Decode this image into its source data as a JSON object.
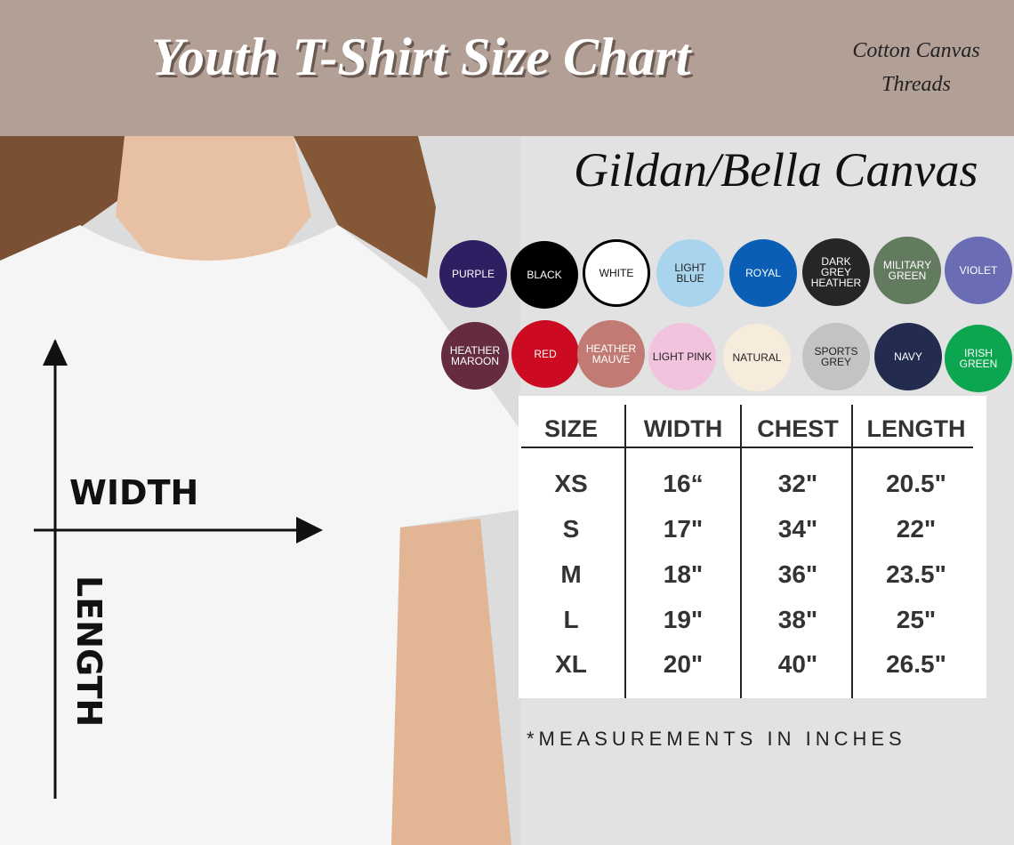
{
  "header": {
    "title": "Youth T-Shirt Size Chart",
    "brand_line1": "Cotton Canvas",
    "brand_line2": "Threads"
  },
  "subtitle": "Gildan/Bella Canvas",
  "diagram": {
    "width_label": "WIDTH",
    "length_label": "LENGTH"
  },
  "colors": [
    {
      "name": "PURPLE",
      "hex": "#2e1f63",
      "text": "#fff"
    },
    {
      "name": "BLACK",
      "hex": "#000000",
      "text": "#fff"
    },
    {
      "name": "WHITE",
      "hex": "#ffffff",
      "text": "#111"
    },
    {
      "name": "LIGHT BLUE",
      "hex": "#a8d4ee",
      "text": "#222"
    },
    {
      "name": "ROYAL",
      "hex": "#0a5eb5",
      "text": "#fff"
    },
    {
      "name": "DARK GREY HEATHER",
      "hex": "#262626",
      "text": "#fff"
    },
    {
      "name": "MILITARY GREEN",
      "hex": "#627a5e",
      "text": "#fff"
    },
    {
      "name": "VIOLET",
      "hex": "#6a6cb4",
      "text": "#fff"
    },
    {
      "name": "HEATHER MAROON",
      "hex": "#652b40",
      "text": "#fff"
    },
    {
      "name": "RED",
      "hex": "#cc0a21",
      "text": "#fff"
    },
    {
      "name": "HEATHER MAUVE",
      "hex": "#c27b74",
      "text": "#fff"
    },
    {
      "name": "LIGHT PINK",
      "hex": "#f1c3de",
      "text": "#222"
    },
    {
      "name": "NATURAL",
      "hex": "#f7ecdc",
      "text": "#222"
    },
    {
      "name": "SPORTS GREY",
      "hex": "#c3c3c5",
      "text": "#222"
    },
    {
      "name": "NAVY",
      "hex": "#232c4e",
      "text": "#fff"
    },
    {
      "name": "IRISH GREEN",
      "hex": "#0ca650",
      "text": "#fff"
    }
  ],
  "size_table": {
    "headers": [
      "SIZE",
      "WIDTH",
      "CHEST",
      "LENGTH"
    ],
    "rows": [
      [
        "XS",
        "16“",
        "32\"",
        "20.5\""
      ],
      [
        "S",
        "17\"",
        "34\"",
        "22\""
      ],
      [
        "M",
        "18\"",
        "36\"",
        "23.5\""
      ],
      [
        "L",
        "19\"",
        "38\"",
        "25\""
      ],
      [
        "XL",
        "20\"",
        "40\"",
        "26.5\""
      ]
    ]
  },
  "note": "*MEASUREMENTS IN INCHES"
}
